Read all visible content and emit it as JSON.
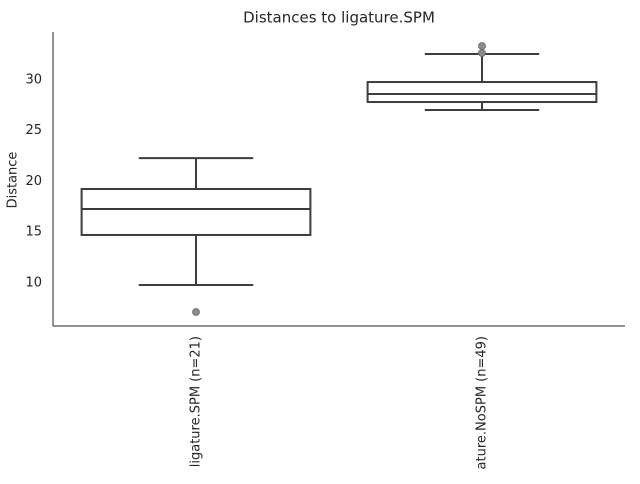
{
  "chart_data": {
    "type": "box",
    "title": "Distances to ligature.SPM",
    "y_label": "Distance",
    "categories": [
      "ligature.SPM (n=21)",
      "ature.NoSPM (n=49)"
    ],
    "boxes": [
      {
        "whislo": 9.8,
        "q1": 14.73,
        "med": 17.29,
        "q3": 19.26,
        "whishi": 22.3,
        "fliers": [
          7.14
        ]
      },
      {
        "whislo": 27.04,
        "q1": 27.83,
        "med": 28.62,
        "q3": 29.8,
        "whishi": 32.56,
        "fliers": [
          33.35,
          32.66
        ]
      }
    ],
    "color": "#3d3d3d",
    "flier_color": "#8c8c8c",
    "ylim": [
      5.76,
      34.73
    ],
    "yticks": [
      10,
      15,
      20,
      25,
      30
    ],
    "grid": false
  }
}
